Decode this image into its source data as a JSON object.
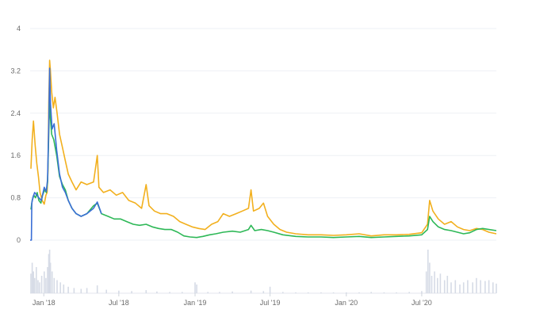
{
  "chart_data": {
    "type": "line",
    "grid": true,
    "legend": "none",
    "x_ticks": [
      "Jan '18",
      "Jul '18",
      "Jan '19",
      "Jul '19",
      "Jan '20",
      "Jul '20"
    ],
    "y_ticks": [
      "0",
      "0.8",
      "1.6",
      "2.4",
      "3.2",
      "4"
    ],
    "ylim": [
      0,
      4
    ],
    "xlim": [
      "2017-11-29",
      "2020-12-28"
    ],
    "colors": {
      "blue": "#3b6fd6",
      "orange": "#f2b01e",
      "green": "#2eb857",
      "volume": "#d6dbe6"
    },
    "series": [
      {
        "color": "#f2b01e",
        "points": [
          [
            "2017-12-01",
            1.35
          ],
          [
            "2017-12-04",
            1.9
          ],
          [
            "2017-12-07",
            2.25
          ],
          [
            "2017-12-11",
            1.8
          ],
          [
            "2017-12-15",
            1.45
          ],
          [
            "2017-12-19",
            1.2
          ],
          [
            "2017-12-23",
            0.9
          ],
          [
            "2017-12-28",
            0.75
          ],
          [
            "2018-01-02",
            0.68
          ],
          [
            "2018-01-06",
            0.85
          ],
          [
            "2018-01-09",
            0.9
          ],
          [
            "2018-01-11",
            1.3
          ],
          [
            "2018-01-13",
            2.6
          ],
          [
            "2018-01-15",
            3.4
          ],
          [
            "2018-01-17",
            3.2
          ],
          [
            "2018-01-20",
            2.8
          ],
          [
            "2018-01-24",
            2.5
          ],
          [
            "2018-01-28",
            2.7
          ],
          [
            "2018-02-02",
            2.4
          ],
          [
            "2018-02-08",
            2.0
          ],
          [
            "2018-02-15",
            1.75
          ],
          [
            "2018-02-22",
            1.5
          ],
          [
            "2018-03-01",
            1.25
          ],
          [
            "2018-03-10",
            1.1
          ],
          [
            "2018-03-20",
            0.95
          ],
          [
            "2018-04-01",
            1.1
          ],
          [
            "2018-04-15",
            1.05
          ],
          [
            "2018-05-01",
            1.1
          ],
          [
            "2018-05-10",
            1.6
          ],
          [
            "2018-05-14",
            1.0
          ],
          [
            "2018-05-25",
            0.9
          ],
          [
            "2018-06-10",
            0.95
          ],
          [
            "2018-06-25",
            0.85
          ],
          [
            "2018-07-10",
            0.9
          ],
          [
            "2018-07-25",
            0.75
          ],
          [
            "2018-08-10",
            0.7
          ],
          [
            "2018-08-25",
            0.6
          ],
          [
            "2018-09-05",
            1.05
          ],
          [
            "2018-09-12",
            0.65
          ],
          [
            "2018-09-25",
            0.55
          ],
          [
            "2018-10-10",
            0.5
          ],
          [
            "2018-10-25",
            0.5
          ],
          [
            "2018-11-10",
            0.45
          ],
          [
            "2018-11-25",
            0.35
          ],
          [
            "2018-12-10",
            0.3
          ],
          [
            "2018-12-25",
            0.25
          ],
          [
            "2019-01-10",
            0.22
          ],
          [
            "2019-01-25",
            0.2
          ],
          [
            "2019-02-10",
            0.3
          ],
          [
            "2019-02-25",
            0.35
          ],
          [
            "2019-03-10",
            0.5
          ],
          [
            "2019-03-25",
            0.45
          ],
          [
            "2019-04-10",
            0.5
          ],
          [
            "2019-04-25",
            0.55
          ],
          [
            "2019-05-10",
            0.6
          ],
          [
            "2019-05-16",
            0.95
          ],
          [
            "2019-05-22",
            0.55
          ],
          [
            "2019-06-05",
            0.6
          ],
          [
            "2019-06-15",
            0.7
          ],
          [
            "2019-06-25",
            0.45
          ],
          [
            "2019-07-10",
            0.3
          ],
          [
            "2019-07-25",
            0.2
          ],
          [
            "2019-08-10",
            0.15
          ],
          [
            "2019-09-01",
            0.12
          ],
          [
            "2019-10-01",
            0.1
          ],
          [
            "2019-11-01",
            0.1
          ],
          [
            "2019-12-01",
            0.09
          ],
          [
            "2020-01-01",
            0.1
          ],
          [
            "2020-02-01",
            0.12
          ],
          [
            "2020-03-01",
            0.08
          ],
          [
            "2020-04-01",
            0.1
          ],
          [
            "2020-05-01",
            0.1
          ],
          [
            "2020-06-01",
            0.11
          ],
          [
            "2020-07-01",
            0.14
          ],
          [
            "2020-07-15",
            0.3
          ],
          [
            "2020-07-20",
            0.75
          ],
          [
            "2020-07-28",
            0.55
          ],
          [
            "2020-08-10",
            0.4
          ],
          [
            "2020-08-25",
            0.3
          ],
          [
            "2020-09-10",
            0.35
          ],
          [
            "2020-09-25",
            0.25
          ],
          [
            "2020-10-10",
            0.2
          ],
          [
            "2020-10-25",
            0.18
          ],
          [
            "2020-11-10",
            0.22
          ],
          [
            "2020-11-25",
            0.2
          ],
          [
            "2020-12-10",
            0.15
          ],
          [
            "2020-12-28",
            0.12
          ]
        ]
      },
      {
        "color": "#2eb857",
        "points": [
          [
            "2017-12-01",
            0.58
          ],
          [
            "2017-12-04",
            0.75
          ],
          [
            "2017-12-08",
            0.85
          ],
          [
            "2017-12-12",
            0.8
          ],
          [
            "2017-12-16",
            0.9
          ],
          [
            "2017-12-20",
            0.75
          ],
          [
            "2017-12-25",
            0.7
          ],
          [
            "2017-12-29",
            0.85
          ],
          [
            "2018-01-03",
            0.95
          ],
          [
            "2018-01-07",
            0.9
          ],
          [
            "2018-01-10",
            1.1
          ],
          [
            "2018-01-13",
            2.0
          ],
          [
            "2018-01-15",
            2.8
          ],
          [
            "2018-01-17",
            2.3
          ],
          [
            "2018-01-20",
            2.0
          ],
          [
            "2018-01-25",
            1.9
          ],
          [
            "2018-02-01",
            1.6
          ],
          [
            "2018-02-08",
            1.2
          ],
          [
            "2018-02-15",
            1.05
          ],
          [
            "2018-02-22",
            0.95
          ],
          [
            "2018-03-01",
            0.75
          ],
          [
            "2018-03-10",
            0.6
          ],
          [
            "2018-03-20",
            0.5
          ],
          [
            "2018-04-01",
            0.45
          ],
          [
            "2018-04-15",
            0.5
          ],
          [
            "2018-05-01",
            0.65
          ],
          [
            "2018-05-10",
            0.7
          ],
          [
            "2018-05-20",
            0.5
          ],
          [
            "2018-06-05",
            0.45
          ],
          [
            "2018-06-20",
            0.4
          ],
          [
            "2018-07-05",
            0.4
          ],
          [
            "2018-07-20",
            0.35
          ],
          [
            "2018-08-05",
            0.3
          ],
          [
            "2018-08-20",
            0.28
          ],
          [
            "2018-09-05",
            0.3
          ],
          [
            "2018-09-20",
            0.25
          ],
          [
            "2018-10-05",
            0.22
          ],
          [
            "2018-10-20",
            0.2
          ],
          [
            "2018-11-05",
            0.2
          ],
          [
            "2018-11-20",
            0.15
          ],
          [
            "2018-12-05",
            0.08
          ],
          [
            "2018-12-20",
            0.06
          ],
          [
            "2019-01-05",
            0.05
          ],
          [
            "2019-01-20",
            0.07
          ],
          [
            "2019-02-05",
            0.1
          ],
          [
            "2019-02-20",
            0.12
          ],
          [
            "2019-03-10",
            0.15
          ],
          [
            "2019-04-01",
            0.17
          ],
          [
            "2019-04-20",
            0.15
          ],
          [
            "2019-05-10",
            0.2
          ],
          [
            "2019-05-16",
            0.28
          ],
          [
            "2019-05-25",
            0.18
          ],
          [
            "2019-06-10",
            0.2
          ],
          [
            "2019-06-25",
            0.18
          ],
          [
            "2019-07-10",
            0.15
          ],
          [
            "2019-08-01",
            0.1
          ],
          [
            "2019-09-01",
            0.07
          ],
          [
            "2019-10-01",
            0.06
          ],
          [
            "2019-11-01",
            0.06
          ],
          [
            "2019-12-01",
            0.05
          ],
          [
            "2020-01-01",
            0.06
          ],
          [
            "2020-02-01",
            0.07
          ],
          [
            "2020-03-01",
            0.05
          ],
          [
            "2020-04-01",
            0.06
          ],
          [
            "2020-05-01",
            0.07
          ],
          [
            "2020-06-01",
            0.08
          ],
          [
            "2020-07-01",
            0.1
          ],
          [
            "2020-07-15",
            0.2
          ],
          [
            "2020-07-20",
            0.45
          ],
          [
            "2020-07-28",
            0.35
          ],
          [
            "2020-08-10",
            0.25
          ],
          [
            "2020-08-25",
            0.2
          ],
          [
            "2020-09-10",
            0.18
          ],
          [
            "2020-09-25",
            0.15
          ],
          [
            "2020-10-10",
            0.12
          ],
          [
            "2020-10-25",
            0.14
          ],
          [
            "2020-11-10",
            0.2
          ],
          [
            "2020-11-25",
            0.22
          ],
          [
            "2020-12-10",
            0.2
          ],
          [
            "2020-12-28",
            0.18
          ]
        ]
      },
      {
        "color": "#3b6fd6",
        "points": [
          [
            "2017-11-29",
            0.0
          ],
          [
            "2017-12-02",
            0.0
          ],
          [
            "2017-12-03",
            0.7
          ],
          [
            "2017-12-06",
            0.82
          ],
          [
            "2017-12-10",
            0.9
          ],
          [
            "2017-12-15",
            0.85
          ],
          [
            "2017-12-20",
            0.8
          ],
          [
            "2017-12-26",
            0.75
          ],
          [
            "2018-01-02",
            1.0
          ],
          [
            "2018-01-07",
            0.92
          ],
          [
            "2018-01-10",
            1.15
          ],
          [
            "2018-01-13",
            2.2
          ],
          [
            "2018-01-15",
            3.25
          ],
          [
            "2018-01-17",
            2.6
          ],
          [
            "2018-01-21",
            2.1
          ],
          [
            "2018-01-26",
            2.2
          ],
          [
            "2018-02-01",
            1.7
          ],
          [
            "2018-02-08",
            1.25
          ],
          [
            "2018-02-15",
            1.0
          ],
          [
            "2018-02-22",
            0.9
          ],
          [
            "2018-03-01",
            0.75
          ],
          [
            "2018-03-10",
            0.6
          ],
          [
            "2018-03-20",
            0.5
          ],
          [
            "2018-04-01",
            0.45
          ],
          [
            "2018-04-15",
            0.5
          ],
          [
            "2018-05-01",
            0.6
          ],
          [
            "2018-05-10",
            0.72
          ],
          [
            "2018-05-20",
            0.5
          ]
        ]
      }
    ],
    "volume": [
      [
        "2017-12-01",
        0.45
      ],
      [
        "2017-12-04",
        0.7
      ],
      [
        "2017-12-07",
        0.5
      ],
      [
        "2017-12-10",
        0.35
      ],
      [
        "2017-12-14",
        0.6
      ],
      [
        "2017-12-18",
        0.3
      ],
      [
        "2017-12-22",
        0.25
      ],
      [
        "2017-12-27",
        0.4
      ],
      [
        "2018-01-02",
        0.5
      ],
      [
        "2018-01-06",
        0.35
      ],
      [
        "2018-01-10",
        0.6
      ],
      [
        "2018-01-13",
        0.9
      ],
      [
        "2018-01-15",
        1.0
      ],
      [
        "2018-01-17",
        0.7
      ],
      [
        "2018-01-21",
        0.5
      ],
      [
        "2018-01-26",
        0.35
      ],
      [
        "2018-02-02",
        0.3
      ],
      [
        "2018-02-10",
        0.25
      ],
      [
        "2018-02-18",
        0.2
      ],
      [
        "2018-03-01",
        0.15
      ],
      [
        "2018-03-15",
        0.12
      ],
      [
        "2018-04-01",
        0.1
      ],
      [
        "2018-04-15",
        0.12
      ],
      [
        "2018-05-10",
        0.18
      ],
      [
        "2018-06-01",
        0.08
      ],
      [
        "2018-07-01",
        0.06
      ],
      [
        "2018-08-01",
        0.05
      ],
      [
        "2018-09-05",
        0.07
      ],
      [
        "2018-10-01",
        0.04
      ],
      [
        "2018-11-01",
        0.03
      ],
      [
        "2018-12-01",
        0.03
      ],
      [
        "2019-01-01",
        0.25
      ],
      [
        "2019-01-05",
        0.2
      ],
      [
        "2019-02-01",
        0.03
      ],
      [
        "2019-03-01",
        0.03
      ],
      [
        "2019-04-01",
        0.04
      ],
      [
        "2019-05-16",
        0.06
      ],
      [
        "2019-06-15",
        0.05
      ],
      [
        "2019-07-01",
        0.15
      ],
      [
        "2019-08-01",
        0.03
      ],
      [
        "2019-09-01",
        0.02
      ],
      [
        "2019-10-01",
        0.02
      ],
      [
        "2019-11-01",
        0.02
      ],
      [
        "2019-12-01",
        0.02
      ],
      [
        "2020-01-01",
        0.02
      ],
      [
        "2020-02-01",
        0.02
      ],
      [
        "2020-03-01",
        0.03
      ],
      [
        "2020-04-01",
        0.02
      ],
      [
        "2020-05-01",
        0.02
      ],
      [
        "2020-06-01",
        0.03
      ],
      [
        "2020-07-01",
        0.05
      ],
      [
        "2020-07-12",
        0.5
      ],
      [
        "2020-07-16",
        1.0
      ],
      [
        "2020-07-20",
        0.7
      ],
      [
        "2020-07-25",
        0.4
      ],
      [
        "2020-08-01",
        0.5
      ],
      [
        "2020-08-08",
        0.35
      ],
      [
        "2020-08-15",
        0.45
      ],
      [
        "2020-08-25",
        0.3
      ],
      [
        "2020-09-01",
        0.4
      ],
      [
        "2020-09-10",
        0.25
      ],
      [
        "2020-09-20",
        0.3
      ],
      [
        "2020-10-01",
        0.2
      ],
      [
        "2020-10-10",
        0.25
      ],
      [
        "2020-10-20",
        0.3
      ],
      [
        "2020-11-01",
        0.25
      ],
      [
        "2020-11-10",
        0.35
      ],
      [
        "2020-11-20",
        0.3
      ],
      [
        "2020-12-01",
        0.28
      ],
      [
        "2020-12-10",
        0.3
      ],
      [
        "2020-12-20",
        0.25
      ],
      [
        "2020-12-28",
        0.22
      ]
    ]
  }
}
